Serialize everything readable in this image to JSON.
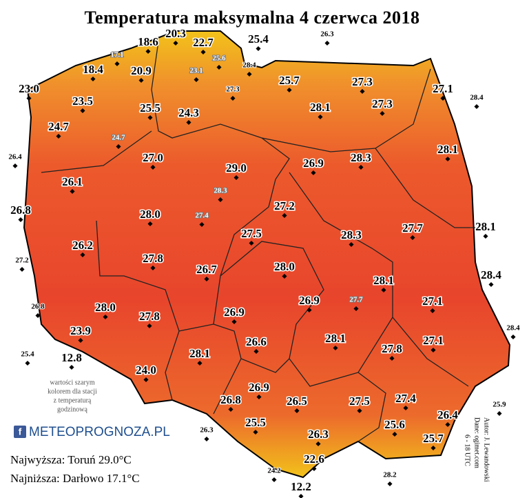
{
  "title": "Temperatura maksymalna 4 czerwca 2018",
  "note": [
    "wartości szarym",
    "kolorem dla stacji",
    "z temperaturą",
    "godzinową"
  ],
  "logo": "METEOPROGNOZA.PL",
  "highest": "Najwyższa: Toruń 29.0°C",
  "lowest": "Najniższa: Darłowo 17.1°C",
  "credits": [
    "Autor: J. Lewandowski",
    "Dane: ogimet.com",
    "6 - 18 UTC"
  ],
  "stations": [
    "18.6",
    "20.3",
    "22.7",
    "25.4",
    "26.3",
    "17.1",
    "25.6",
    "18.4",
    "20.9",
    "28.4",
    "23.1",
    "23.0",
    "27.3",
    "25.7",
    "27.3",
    "27.1",
    "28.4",
    "23.5",
    "25.5",
    "28.1",
    "27.3",
    "24.3",
    "24.7",
    "24.7",
    "28.1",
    "26.4",
    "27.0",
    "29.0",
    "26.9",
    "28.3",
    "28.3",
    "26.1",
    "27.2",
    "26.8",
    "28.0",
    "27.4",
    "28.1",
    "27.5",
    "28.3",
    "27.7",
    "26.2",
    "27.2",
    "27.8",
    "28.0",
    "26.7",
    "28.4",
    "28.1",
    "27.1",
    "26.9",
    "27.7",
    "26.8",
    "28.0",
    "27.8",
    "26.9",
    "28.4",
    "23.9",
    "27.1",
    "28.1",
    "26.6",
    "25.4",
    "12.8",
    "27.8",
    "28.1",
    "24.0",
    "26.9",
    "26.8",
    "26.5",
    "27.5",
    "27.4",
    "25.9",
    "26.4",
    "25.5",
    "25.6",
    "26.3",
    "26.3",
    "25.7",
    "22.6",
    "24.2",
    "12.2",
    "28.2"
  ]
}
